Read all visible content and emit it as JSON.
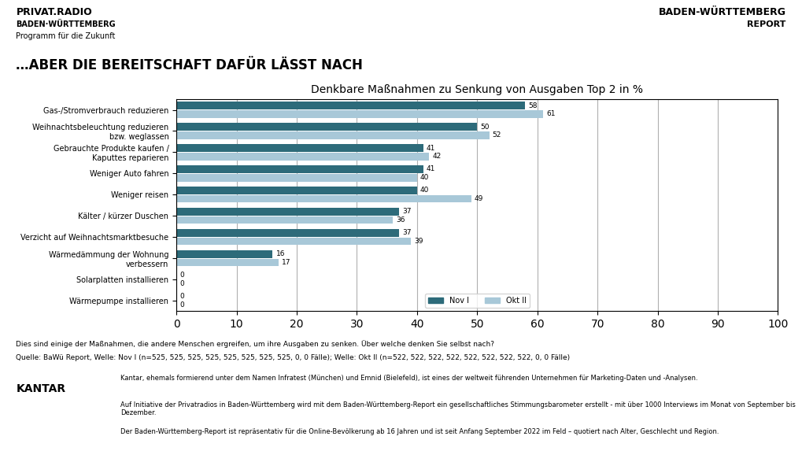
{
  "chart_data": {
    "type": "bar",
    "orientation": "horizontal",
    "title": "Denkbare Maßnahmen zu Senkung von Ausgaben Top 2 in %",
    "subtitle": "…ABER DIE BEREITSCHAFT DAFÜR LÄSST NACH",
    "categories": [
      "Gas-/Stromverbrauch reduzieren",
      "Weihnachtsbeleuchtung reduzieren\nbzw. weglassen",
      "Gebrauchte Produkte kaufen /\nKaputtes reparieren",
      "Weniger Auto fahren",
      "Weniger reisen",
      "Kälter / kürzer Duschen",
      "Verzicht auf Weihnachtsmarktbesuche",
      "Wärmedämmung der Wohnung\nverbessern",
      "Solarplatten installieren",
      "Wärmepumpe installieren"
    ],
    "series": [
      {
        "name": "Nov I",
        "color": "#2d6b7a",
        "values": [
          58,
          50,
          41,
          41,
          40,
          37,
          37,
          16,
          0,
          0
        ]
      },
      {
        "name": "Okt II",
        "color": "#a8c8d8",
        "values": [
          61,
          52,
          42,
          40,
          49,
          36,
          39,
          17,
          0,
          0
        ]
      }
    ],
    "xlim": [
      0,
      100
    ],
    "xticks": [
      0,
      10,
      20,
      30,
      40,
      50,
      60,
      70,
      80,
      90,
      100
    ],
    "grid": true,
    "legend": "lower center",
    "data_labels": true,
    "annotations": [
      "PRIVAT.RADIO",
      "BADEN·WÜRTTEMBERG",
      "Programm für die Zukunft",
      "BADEN-WÜRTTEMBERG",
      "REPORT",
      "Dies sind einige der Maßnahmen, die andere Menschen ergreifen, um ihre Ausgaben zu senken. Über welche denken Sie selbst nach?",
      "Quelle: BaWü Report, Welle: Nov I (n=525, 525, 525, 525, 525, 525, 525, 525, 0, 0 Fälle); Welle: Okt II (n=522, 522, 522, 522, 522, 522, 522, 522, 0, 0 Fälle)",
      "KANTAR",
      "Kantar, ehemals formierend unter dem Namen Infratest (München) und Emnid (Bielefeld), ist eines der weltweit führenden Unternehmen für Marketing-Daten und -Analysen.",
      "Auf Initiative der Privatradios in Baden-Württemberg wird mit dem Baden-Württemberg-Report ein gesellschaftliches Stimmungsbarometer erstellt - mit über 1000 Interviews im Monat von September bis Dezember.",
      "Der Baden-Württemberg-Report ist repräsentativ für die Online-Bevölkerung ab 16 Jahren und ist seit Anfang September 2022 im Feld – quotiert nach Alter, Geschlecht und Region."
    ]
  }
}
